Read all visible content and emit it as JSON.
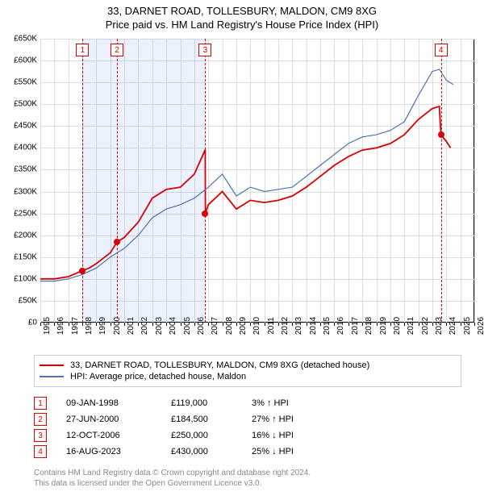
{
  "title": {
    "line1": "33, DARNET ROAD, TOLLESBURY, MALDON, CM9 8XG",
    "line2": "Price paid vs. HM Land Registry's House Price Index (HPI)",
    "fontsize": 13
  },
  "chart": {
    "type": "line",
    "background_color": "#ffffff",
    "grid_color": "#dddddd",
    "border_color": "#000000",
    "x": {
      "min": 1995,
      "max": 2026,
      "ticks": [
        1995,
        1996,
        1997,
        1998,
        1999,
        2000,
        2001,
        2002,
        2003,
        2004,
        2005,
        2006,
        2007,
        2008,
        2009,
        2010,
        2011,
        2012,
        2013,
        2014,
        2015,
        2016,
        2017,
        2018,
        2019,
        2020,
        2021,
        2022,
        2023,
        2024,
        2025,
        2026
      ],
      "label_fontsize": 10
    },
    "y": {
      "min": 0,
      "max": 650000,
      "tick_step": 50000,
      "label_prefix": "£",
      "label_suffix": "K",
      "label_fontsize": 10
    },
    "series": [
      {
        "name": "property",
        "label": "33, DARNET ROAD, TOLLESBURY, MALDON, CM9 8XG (detached house)",
        "color": "#d80000",
        "width": 1.8,
        "points": [
          [
            1995,
            100000
          ],
          [
            1996,
            100000
          ],
          [
            1997,
            105000
          ],
          [
            1998,
            119000
          ],
          [
            1998.5,
            125000
          ],
          [
            1999,
            135000
          ],
          [
            2000,
            160000
          ],
          [
            2000.48,
            184500
          ],
          [
            2001,
            195000
          ],
          [
            2002,
            230000
          ],
          [
            2003,
            285000
          ],
          [
            2004,
            305000
          ],
          [
            2005,
            310000
          ],
          [
            2006,
            340000
          ],
          [
            2006.78,
            396000
          ],
          [
            2006.79,
            250000
          ],
          [
            2007,
            270000
          ],
          [
            2008,
            300000
          ],
          [
            2009,
            260000
          ],
          [
            2010,
            280000
          ],
          [
            2011,
            275000
          ],
          [
            2012,
            280000
          ],
          [
            2013,
            290000
          ],
          [
            2014,
            310000
          ],
          [
            2015,
            335000
          ],
          [
            2016,
            360000
          ],
          [
            2017,
            380000
          ],
          [
            2018,
            395000
          ],
          [
            2019,
            400000
          ],
          [
            2020,
            410000
          ],
          [
            2021,
            430000
          ],
          [
            2022,
            465000
          ],
          [
            2023,
            490000
          ],
          [
            2023.5,
            495000
          ],
          [
            2023.62,
            430000
          ],
          [
            2024,
            415000
          ],
          [
            2024.3,
            400000
          ]
        ]
      },
      {
        "name": "hpi",
        "label": "HPI: Average price, detached house, Maldon",
        "color": "#4b73b5",
        "width": 1.2,
        "points": [
          [
            1995,
            95000
          ],
          [
            1996,
            95000
          ],
          [
            1997,
            100000
          ],
          [
            1998,
            110000
          ],
          [
            1999,
            125000
          ],
          [
            2000,
            150000
          ],
          [
            2001,
            170000
          ],
          [
            2002,
            200000
          ],
          [
            2003,
            240000
          ],
          [
            2004,
            260000
          ],
          [
            2005,
            270000
          ],
          [
            2006,
            285000
          ],
          [
            2007,
            310000
          ],
          [
            2008,
            340000
          ],
          [
            2009,
            290000
          ],
          [
            2010,
            310000
          ],
          [
            2011,
            300000
          ],
          [
            2012,
            305000
          ],
          [
            2013,
            310000
          ],
          [
            2014,
            335000
          ],
          [
            2015,
            360000
          ],
          [
            2016,
            385000
          ],
          [
            2017,
            410000
          ],
          [
            2018,
            425000
          ],
          [
            2019,
            430000
          ],
          [
            2020,
            440000
          ],
          [
            2021,
            460000
          ],
          [
            2022,
            520000
          ],
          [
            2023,
            575000
          ],
          [
            2023.5,
            580000
          ],
          [
            2024,
            555000
          ],
          [
            2024.5,
            545000
          ]
        ]
      }
    ],
    "sale_points": [
      {
        "x": 1998.02,
        "y": 119000,
        "color": "#d80000"
      },
      {
        "x": 2000.48,
        "y": 184500,
        "color": "#d80000"
      },
      {
        "x": 2006.78,
        "y": 250000,
        "color": "#d80000"
      },
      {
        "x": 2023.62,
        "y": 430000,
        "color": "#d80000"
      }
    ],
    "event_markers": [
      {
        "n": "1",
        "x": 1998.02,
        "color": "#d80000",
        "shade": true
      },
      {
        "n": "2",
        "x": 2000.48,
        "color": "#d80000",
        "shade": true
      },
      {
        "n": "3",
        "x": 2006.78,
        "color": "#d80000",
        "shade": false
      },
      {
        "n": "4",
        "x": 2023.62,
        "color": "#d80000",
        "shade": false
      }
    ]
  },
  "legend": {
    "border_color": "#cccccc",
    "items": [
      {
        "label": "33, DARNET ROAD, TOLLESBURY, MALDON, CM9 8XG (detached house)",
        "color": "#d80000"
      },
      {
        "label": "HPI: Average price, detached house, Maldon",
        "color": "#4b73b5"
      }
    ]
  },
  "sales": [
    {
      "n": "1",
      "date": "09-JAN-1998",
      "price": "£119,000",
      "pct": "3% ↑ HPI",
      "color": "#d80000"
    },
    {
      "n": "2",
      "date": "27-JUN-2000",
      "price": "£184,500",
      "pct": "27% ↑ HPI",
      "color": "#d80000"
    },
    {
      "n": "3",
      "date": "12-OCT-2006",
      "price": "£250,000",
      "pct": "16% ↓ HPI",
      "color": "#d80000"
    },
    {
      "n": "4",
      "date": "16-AUG-2023",
      "price": "£430,000",
      "pct": "25% ↓ HPI",
      "color": "#d80000"
    }
  ],
  "footer": {
    "line1": "Contains HM Land Registry data © Crown copyright and database right 2024.",
    "line2": "This data is licensed under the Open Government Licence v3.0.",
    "color": "#888888"
  }
}
